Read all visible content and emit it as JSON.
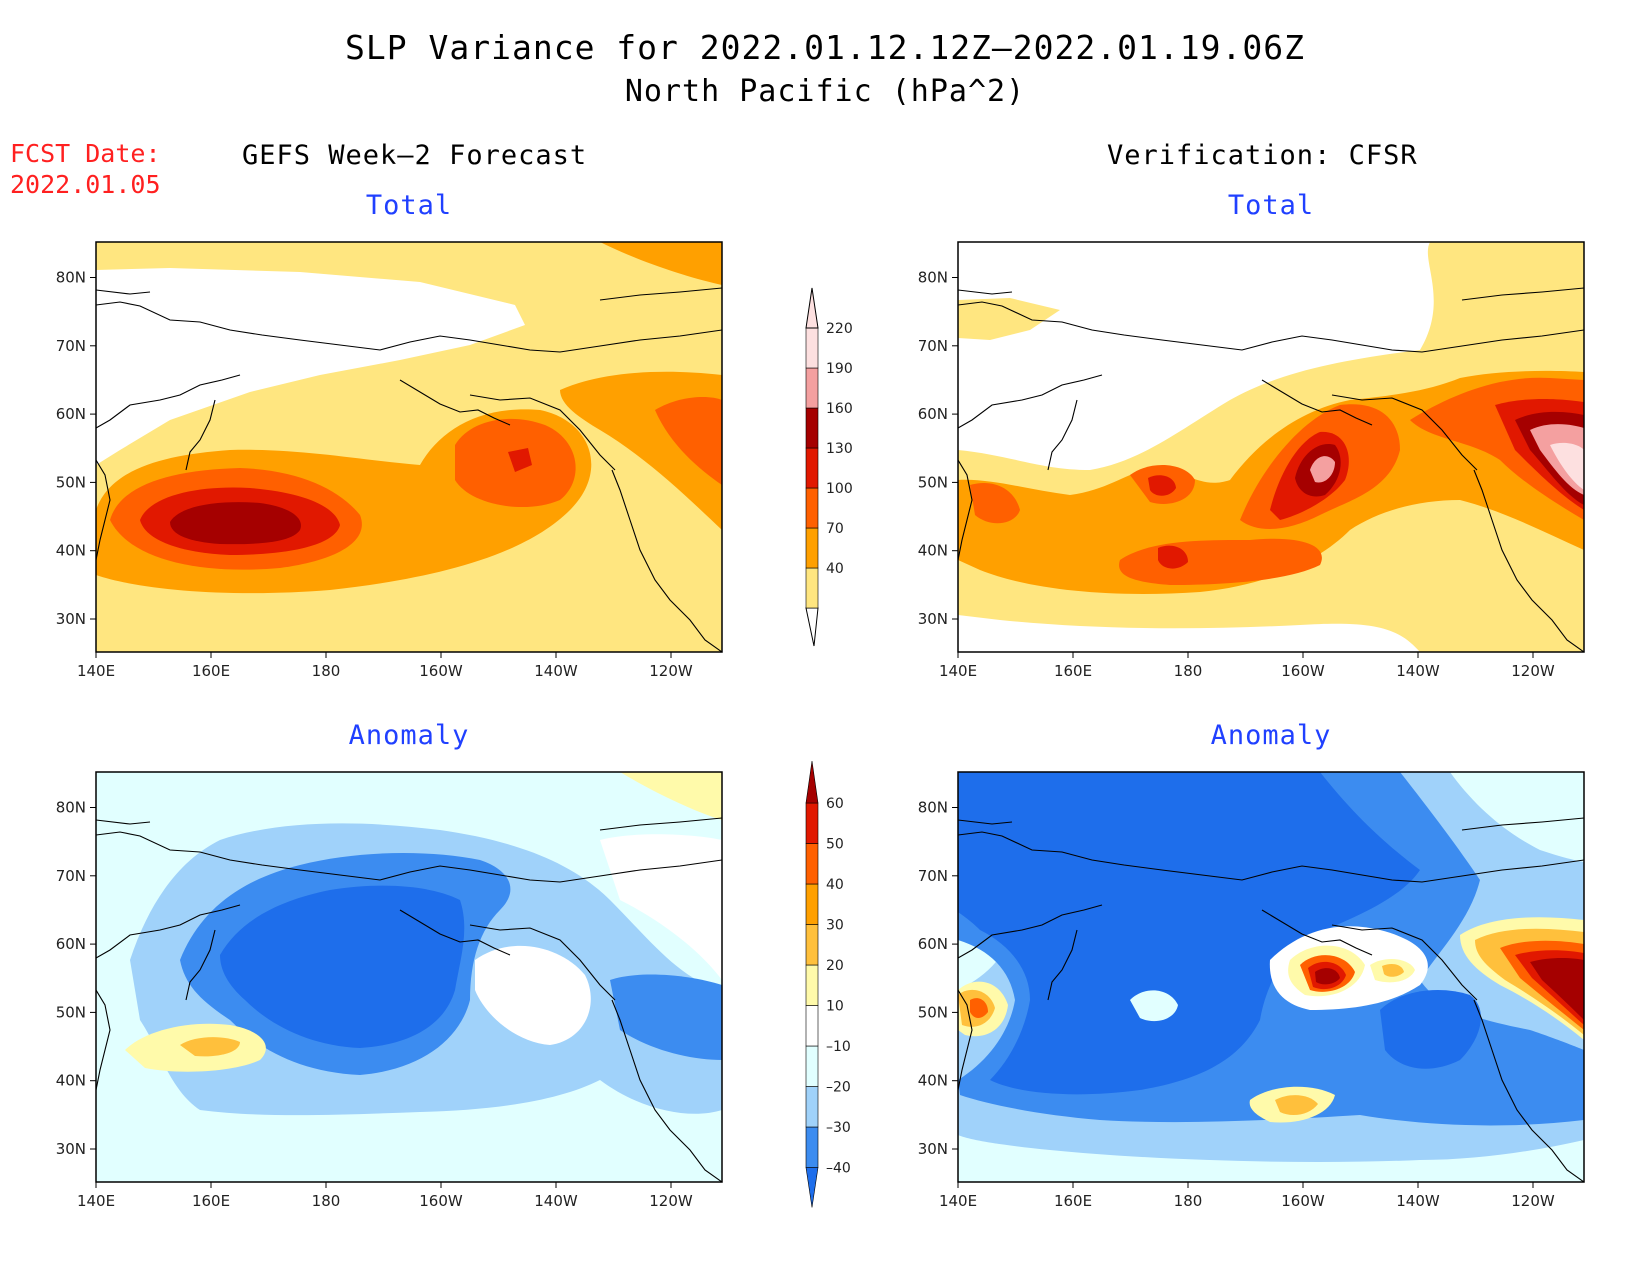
{
  "title": {
    "line1": "SLP Variance for 2022.01.12.12Z–2022.01.19.06Z",
    "line2": "North Pacific (hPa^2)"
  },
  "forecast_date": {
    "label": "FCST Date:",
    "value": "2022.01.05"
  },
  "columns": {
    "left": "GEFS Week–2 Forecast",
    "right": "Verification: CFSR"
  },
  "panels": {
    "gefs_total": "Total",
    "cfsr_total": "Total",
    "gefs_anomaly": "Anomaly",
    "cfsr_anomaly": "Anomaly"
  },
  "axes": {
    "lon_ticks": [
      "140E",
      "160E",
      "180",
      "160W",
      "140W",
      "120W"
    ],
    "lat_ticks": [
      "30N",
      "40N",
      "50N",
      "60N",
      "70N",
      "80N"
    ]
  },
  "colorbars": {
    "total": {
      "levels": [
        "40",
        "70",
        "100",
        "130",
        "160",
        "190",
        "220"
      ],
      "colors": [
        "#ffe680",
        "#ffa000",
        "#ff6000",
        "#e11800",
        "#a50000",
        "#f4a0a0",
        "#fde0e0"
      ]
    },
    "anomaly": {
      "levels": [
        "–40",
        "–30",
        "–20",
        "–10",
        "10",
        "20",
        "30",
        "40",
        "50",
        "60"
      ],
      "colors": [
        "#1e6eeb",
        "#3c8cf0",
        "#a0d2fa",
        "#e1ffff",
        "#ffffff",
        "#fffaaa",
        "#ffc03c",
        "#ffa000",
        "#ff6000",
        "#e11800",
        "#a50000"
      ]
    }
  },
  "map_colors": {
    "land_outline": "#000000",
    "frame": "#000000"
  }
}
